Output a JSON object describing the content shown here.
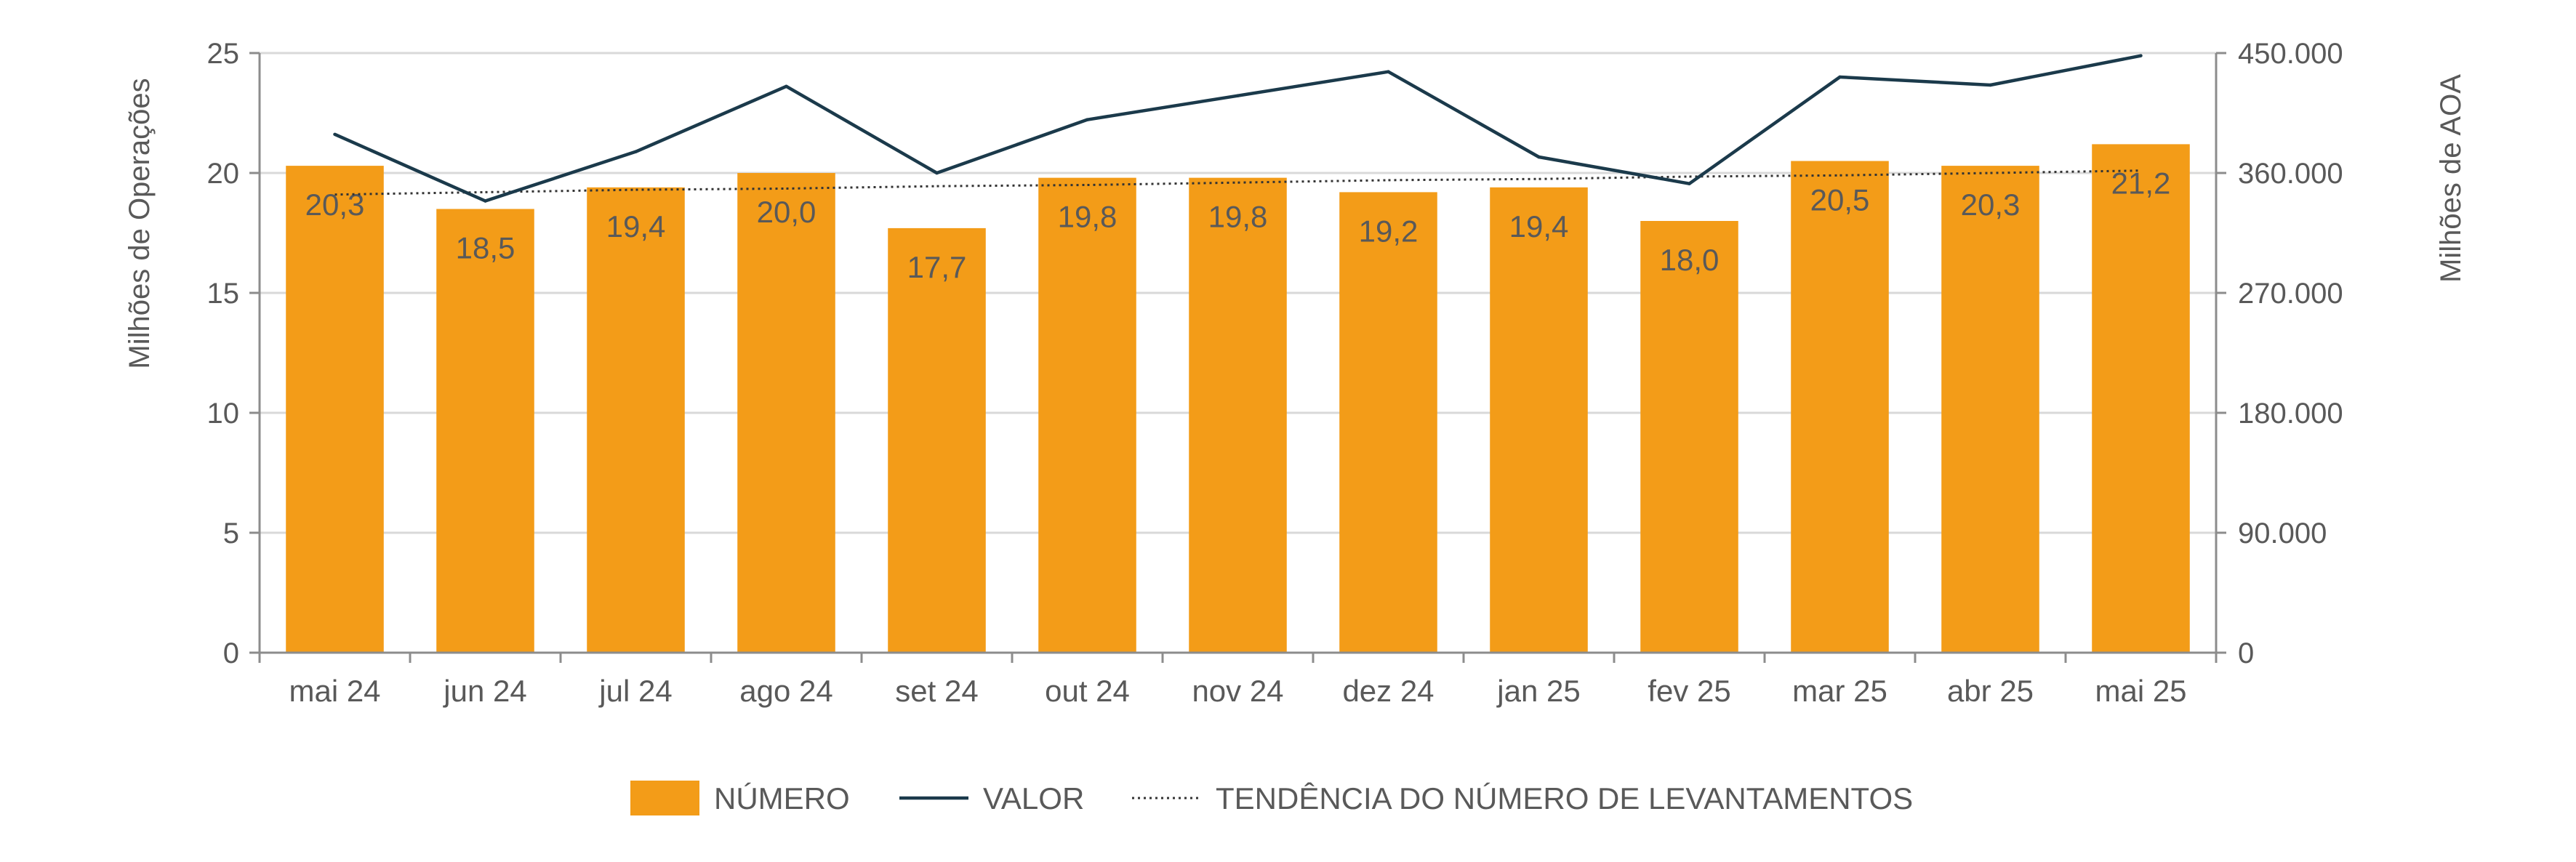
{
  "chart_data": {
    "type": "bar",
    "categories": [
      "mai 24",
      "jun 24",
      "jul 24",
      "ago 24",
      "set 24",
      "out 24",
      "nov 24",
      "dez 24",
      "jan 25",
      "fev 25",
      "mar 25",
      "abr 25",
      "mai 25"
    ],
    "series": [
      {
        "name": "NÚMERO",
        "type": "bar",
        "axis": "left",
        "color": "#F39C18",
        "values": [
          20.3,
          18.5,
          19.4,
          20.0,
          17.7,
          19.8,
          19.8,
          19.2,
          19.4,
          18.0,
          20.5,
          20.3,
          21.2
        ],
        "labels": [
          "20,3",
          "18,5",
          "19,4",
          "20,0",
          "17,7",
          "19,8",
          "19,8",
          "19,2",
          "19,4",
          "18,0",
          "20,5",
          "20,3",
          "21,2"
        ]
      },
      {
        "name": "VALOR",
        "type": "line",
        "axis": "right",
        "color": "#1B3A4B",
        "values": [
          389000,
          339000,
          376000,
          425000,
          360000,
          400000,
          418000,
          436000,
          372000,
          352000,
          432000,
          426000,
          448000
        ]
      },
      {
        "name": "TENDÊNCIA DO NÚMERO DE LEVANTAMENTOS",
        "type": "line",
        "style": "dotted",
        "axis": "left",
        "color": "#333333",
        "values": [
          19.1,
          19.2,
          19.3,
          19.35,
          19.45,
          19.5,
          19.6,
          19.7,
          19.75,
          19.85,
          19.9,
          20.0,
          20.1
        ]
      }
    ],
    "y_left": {
      "label": "Milhões de Operações",
      "min": 0,
      "max": 25,
      "ticks": [
        0,
        5,
        10,
        15,
        20,
        25
      ],
      "tick_labels": [
        "0",
        "5",
        "10",
        "15",
        "20",
        "25"
      ]
    },
    "y_right": {
      "label": "Milhões de AOA",
      "min": 0,
      "max": 450000,
      "ticks": [
        0,
        90000,
        180000,
        270000,
        360000,
        450000
      ],
      "tick_labels": [
        "0",
        "90.000",
        "180.000",
        "270.000",
        "360.000",
        "450.000"
      ]
    },
    "grid": true,
    "legend_position": "bottom-center"
  }
}
